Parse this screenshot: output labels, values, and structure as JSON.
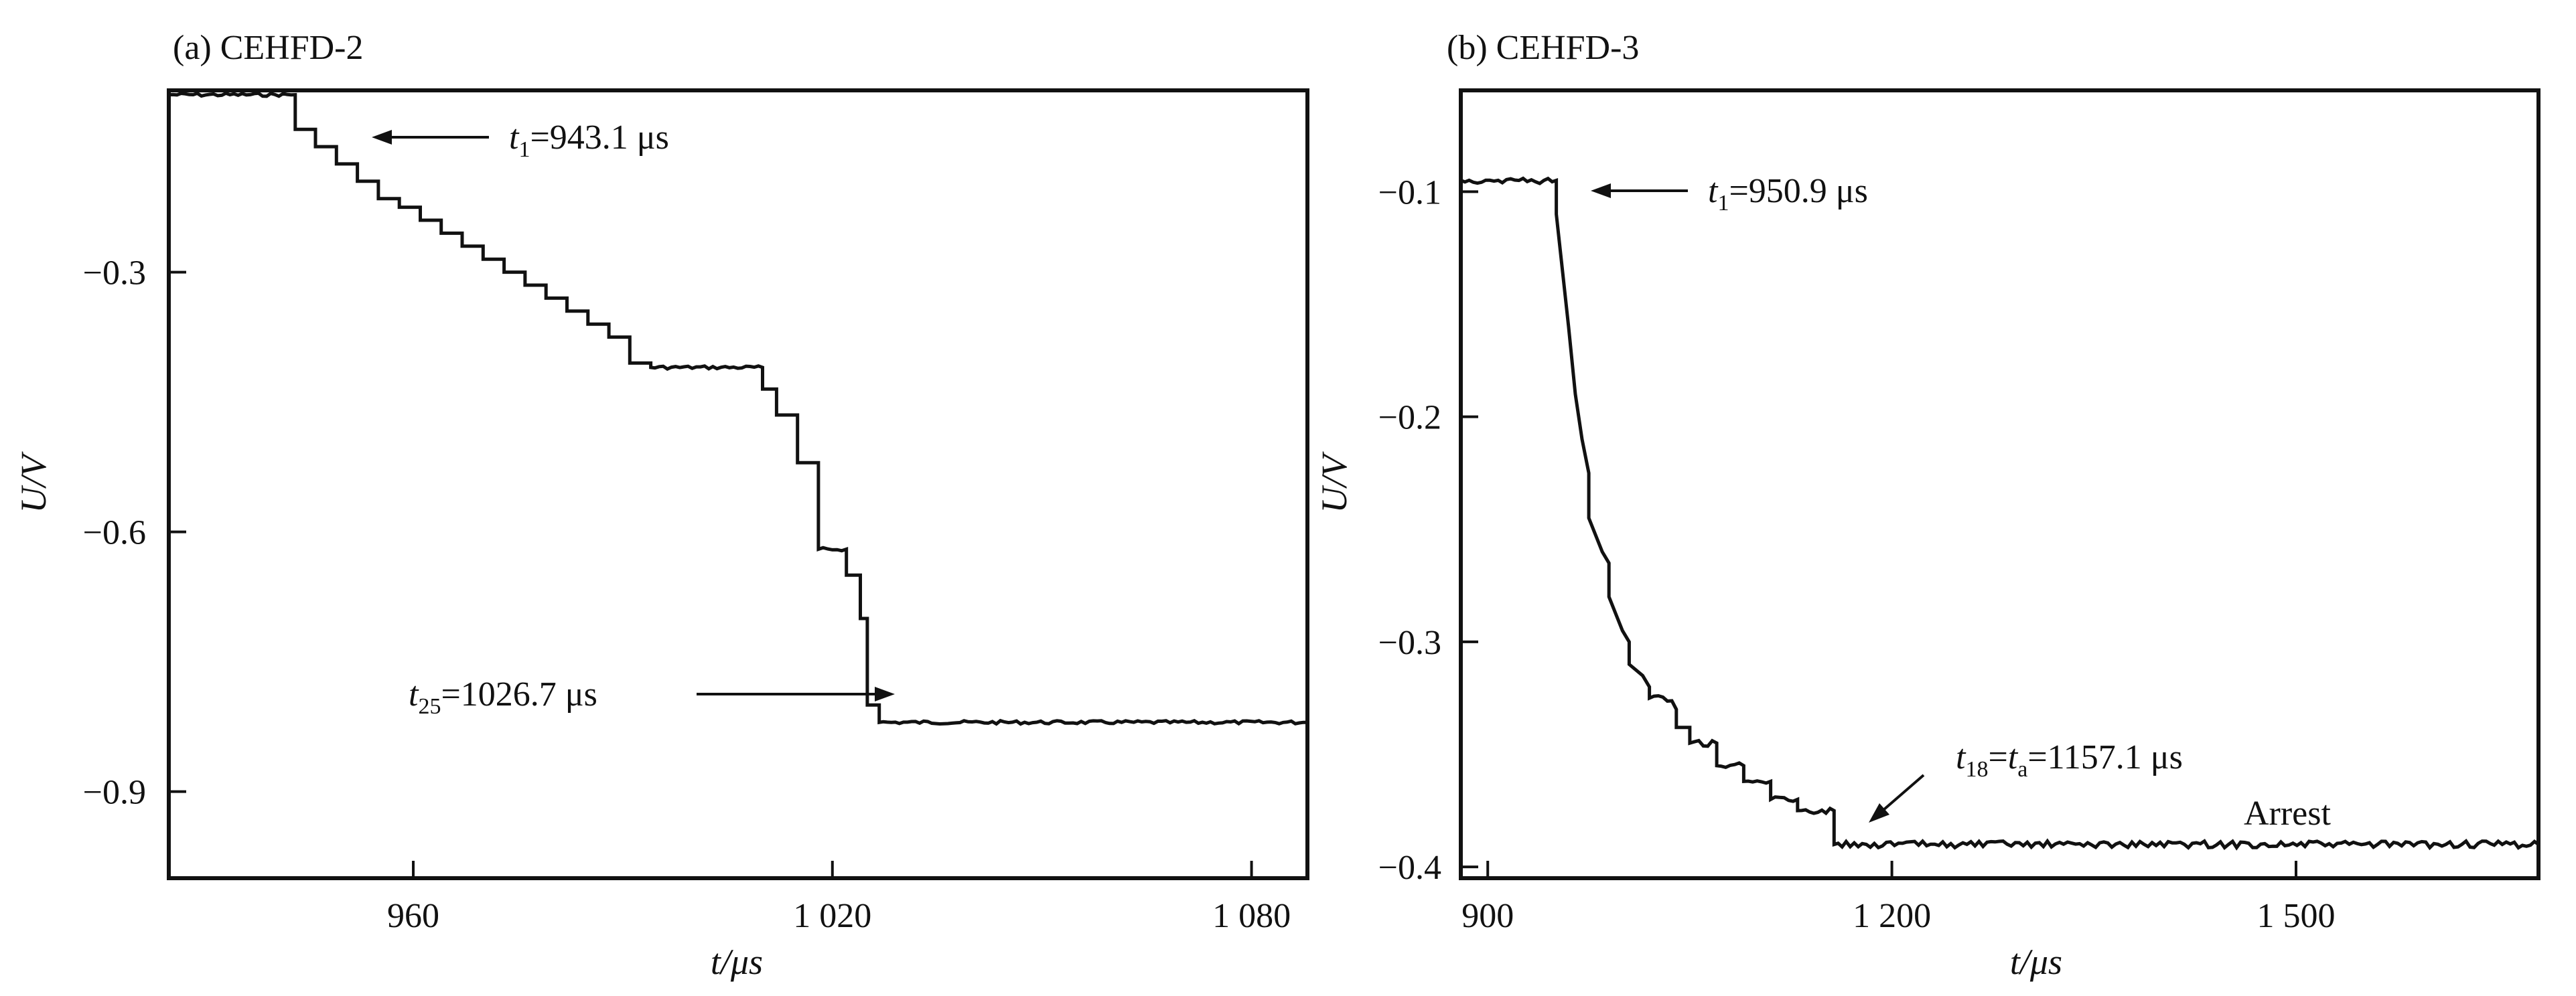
{
  "chart_data": [
    {
      "type": "line",
      "title": "(a) CEHFD-2",
      "xlabel": "t/μs",
      "ylabel": "U/V",
      "xlim": [
        925,
        1088
      ],
      "ylim": [
        -1.0,
        -0.09
      ],
      "xticks": [
        {
          "value": 960,
          "label": "960"
        },
        {
          "value": 1020,
          "label": "1 020"
        },
        {
          "value": 1080,
          "label": "1 080"
        }
      ],
      "yticks": [
        {
          "value": -0.3,
          "label": "−0.3"
        },
        {
          "value": -0.6,
          "label": "−0.6"
        },
        {
          "value": -0.9,
          "label": "−0.9"
        }
      ],
      "grid": false,
      "series": [
        {
          "x": [
            925,
            943.1,
            943.1,
            946,
            946,
            949,
            949,
            952,
            952,
            955,
            955,
            958,
            958,
            961,
            961,
            964,
            964,
            967,
            967,
            970,
            970,
            973,
            973,
            976,
            976,
            979,
            979,
            982,
            982,
            985,
            985,
            988,
            988,
            991,
            991,
            994,
            994,
            1010,
            1010,
            1012,
            1012,
            1015,
            1015,
            1018,
            1018,
            1022,
            1022,
            1024,
            1024,
            1025,
            1025,
            1026.7,
            1026.7,
            1088
          ],
          "y": [
            -0.095,
            -0.095,
            -0.135,
            -0.135,
            -0.155,
            -0.155,
            -0.175,
            -0.175,
            -0.195,
            -0.195,
            -0.215,
            -0.215,
            -0.225,
            -0.225,
            -0.24,
            -0.24,
            -0.255,
            -0.255,
            -0.27,
            -0.27,
            -0.285,
            -0.285,
            -0.3,
            -0.3,
            -0.315,
            -0.315,
            -0.33,
            -0.33,
            -0.345,
            -0.345,
            -0.36,
            -0.36,
            -0.375,
            -0.375,
            -0.405,
            -0.405,
            -0.41,
            -0.41,
            -0.435,
            -0.435,
            -0.465,
            -0.465,
            -0.52,
            -0.52,
            -0.62,
            -0.62,
            -0.65,
            -0.65,
            -0.7,
            -0.7,
            -0.8,
            -0.8,
            -0.82,
            -0.82
          ]
        }
      ],
      "annotations": [
        {
          "sub_text": "t",
          "sub_index": "1",
          "rest": "=943.1 μs",
          "x": 943.1,
          "y": -0.095
        },
        {
          "sub_text": "t",
          "sub_index": "25",
          "rest": "=1026.7 μs",
          "x": 1026.7,
          "y": -0.8
        }
      ]
    },
    {
      "type": "line",
      "title": "(b) CEHFD-3",
      "xlabel": "t/μs",
      "ylabel": "U/V",
      "xlim": [
        880,
        1680
      ],
      "ylim": [
        -0.405,
        -0.055
      ],
      "xticks": [
        {
          "value": 900,
          "label": "900"
        },
        {
          "value": 1200,
          "label": "1 200"
        },
        {
          "value": 1500,
          "label": "1 500"
        }
      ],
      "yticks": [
        {
          "value": -0.1,
          "label": "−0.1"
        },
        {
          "value": -0.2,
          "label": "−0.2"
        },
        {
          "value": -0.3,
          "label": "−0.3"
        },
        {
          "value": -0.4,
          "label": "−0.4"
        }
      ],
      "grid": false,
      "series": [
        {
          "x": [
            880,
            950.9,
            950.9,
            960,
            965,
            970,
            975,
            975,
            985,
            990,
            990,
            1000,
            1005,
            1005,
            1015,
            1020,
            1020,
            1040,
            1040,
            1050,
            1050,
            1070,
            1070,
            1090,
            1090,
            1110,
            1110,
            1130,
            1130,
            1157.1,
            1157.1,
            1680
          ],
          "y": [
            -0.095,
            -0.095,
            -0.11,
            -0.16,
            -0.19,
            -0.21,
            -0.225,
            -0.245,
            -0.26,
            -0.265,
            -0.28,
            -0.295,
            -0.3,
            -0.31,
            -0.315,
            -0.32,
            -0.325,
            -0.33,
            -0.338,
            -0.338,
            -0.345,
            -0.345,
            -0.355,
            -0.355,
            -0.362,
            -0.362,
            -0.37,
            -0.37,
            -0.375,
            -0.375,
            -0.39,
            -0.39
          ]
        }
      ],
      "annotations": [
        {
          "sub_text": "t",
          "sub_index": "1",
          "rest": "=950.9 μs",
          "x": 950.9,
          "y": -0.095
        },
        {
          "sub_text": "t",
          "sub_index": "18",
          "rest": "=",
          "sub_text2": "t",
          "sub_index2": "a",
          "rest2": "=1157.1 μs",
          "x": 1157.1,
          "y": -0.39
        },
        {
          "text": "Arrest"
        }
      ]
    }
  ]
}
